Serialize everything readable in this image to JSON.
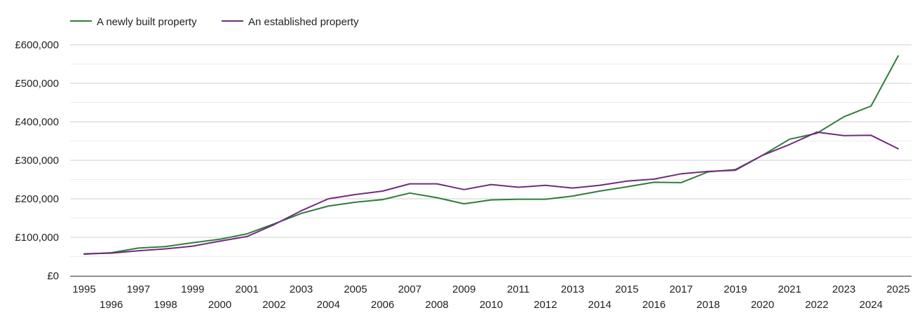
{
  "chart_data": {
    "type": "line",
    "title": "",
    "xlabel": "",
    "ylabel": "",
    "ylim": [
      0,
      600000
    ],
    "grid": true,
    "legend_position": "top-left",
    "x": [
      1995,
      1996,
      1997,
      1998,
      1999,
      2000,
      2001,
      2002,
      2003,
      2004,
      2005,
      2006,
      2007,
      2008,
      2009,
      2010,
      2011,
      2012,
      2013,
      2014,
      2015,
      2016,
      2017,
      2018,
      2019,
      2020,
      2021,
      2022,
      2023,
      2024,
      2025
    ],
    "x_tick_labels": [
      "1995",
      "1996",
      "1997",
      "1998",
      "1999",
      "2000",
      "2001",
      "2002",
      "2003",
      "2004",
      "2005",
      "2006",
      "2007",
      "2008",
      "2009",
      "2010",
      "2011",
      "2012",
      "2013",
      "2014",
      "2015",
      "2016",
      "2017",
      "2018",
      "2019",
      "2020",
      "2021",
      "2022",
      "2023",
      "2024",
      "2025"
    ],
    "y_ticks": [
      0,
      100000,
      200000,
      300000,
      400000,
      500000,
      600000
    ],
    "y_tick_labels": [
      "£0",
      "£100,000",
      "£200,000",
      "£300,000",
      "£400,000",
      "£500,000",
      "£600,000"
    ],
    "series": [
      {
        "name": "A newly built property",
        "color": "#2e7d3a",
        "values": [
          56000,
          60000,
          72000,
          76000,
          86000,
          95000,
          109000,
          135000,
          162000,
          181000,
          191000,
          198000,
          215000,
          203000,
          187000,
          197000,
          199000,
          199000,
          207000,
          220000,
          231000,
          243000,
          242000,
          270000,
          276000,
          313000,
          355000,
          370000,
          413000,
          441000,
          571000
        ]
      },
      {
        "name": "An established property",
        "color": "#722b7e",
        "values": [
          57000,
          59000,
          65000,
          70000,
          77000,
          90000,
          102000,
          133000,
          169000,
          200000,
          211000,
          220000,
          239000,
          239000,
          224000,
          237000,
          230000,
          235000,
          228000,
          235000,
          246000,
          251000,
          265000,
          271000,
          274000,
          313000,
          341000,
          373000,
          364000,
          365000,
          330000
        ]
      }
    ]
  }
}
